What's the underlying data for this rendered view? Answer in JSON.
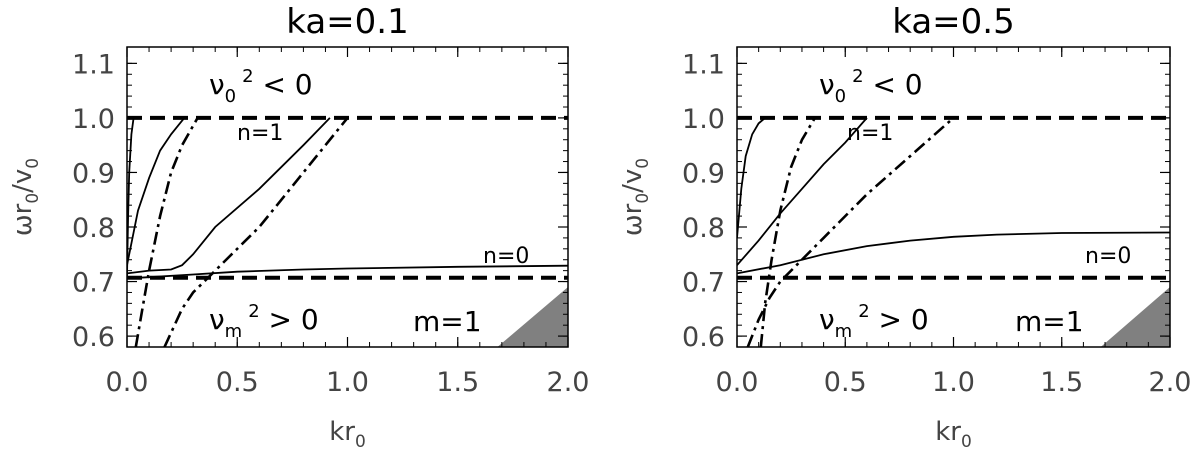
{
  "chart_data": [
    {
      "type": "line",
      "title": "ka=0.1",
      "xlabel": "kr",
      "xlabel_sub": "0",
      "ylabel": "ωr",
      "ylabel_sub": "0",
      "ylabel_tail": "/v",
      "ylabel_sub2": "0",
      "xlim": [
        0,
        2.0
      ],
      "ylim": [
        0.58,
        1.13
      ],
      "xticks": [
        "0.0",
        "0.5",
        "1.0",
        "1.5",
        "2.0"
      ],
      "yticks": [
        "0.6",
        "0.7",
        "0.8",
        "0.9",
        "1.0",
        "1.1"
      ],
      "hlines": [
        1.0,
        0.707
      ],
      "labels": {
        "nu0": "ν",
        "nu0_sub": "0",
        "nu0_sup": "2",
        "nu0_rel": "< 0",
        "num": "ν",
        "num_sub": "m",
        "num_sup": "2",
        "num_rel": "> 0",
        "n1": "n=1",
        "n0": "n=0",
        "m": "m=1"
      },
      "series": [
        {
          "style": "solid",
          "x": [
            0.0,
            0.005,
            0.01,
            0.02,
            0.03
          ],
          "y": [
            0.71,
            0.82,
            0.9,
            0.97,
            1.0
          ]
        },
        {
          "style": "solid",
          "x": [
            0.0,
            0.05,
            0.1,
            0.15,
            0.2,
            0.26
          ],
          "y": [
            0.73,
            0.83,
            0.89,
            0.94,
            0.97,
            1.0
          ]
        },
        {
          "style": "dashdot",
          "x": [
            0.04,
            0.07,
            0.1,
            0.15,
            0.2,
            0.25,
            0.32
          ],
          "y": [
            0.58,
            0.65,
            0.72,
            0.82,
            0.9,
            0.95,
            1.0
          ]
        },
        {
          "style": "solid",
          "x": [
            0.0,
            0.1,
            0.2,
            0.25,
            0.3,
            0.4,
            0.6,
            0.8,
            0.92
          ],
          "y": [
            0.715,
            0.72,
            0.722,
            0.73,
            0.75,
            0.8,
            0.87,
            0.95,
            1.0
          ]
        },
        {
          "style": "dashdot",
          "x": [
            0.17,
            0.25,
            0.3,
            0.4,
            0.6,
            0.8,
            1.0
          ],
          "y": [
            0.58,
            0.65,
            0.68,
            0.72,
            0.8,
            0.9,
            1.0
          ]
        },
        {
          "style": "solid",
          "x": [
            0.0,
            0.1,
            0.3,
            0.5,
            0.8,
            1.0,
            1.5,
            2.0
          ],
          "y": [
            0.706,
            0.708,
            0.713,
            0.718,
            0.722,
            0.724,
            0.727,
            0.729
          ]
        }
      ],
      "shaded": {
        "x": [
          1.68,
          2.0,
          2.0
        ],
        "y": [
          0.58,
          0.69,
          0.58
        ],
        "color": "#808080"
      }
    },
    {
      "type": "line",
      "title": "ka=0.5",
      "xlabel": "kr",
      "xlabel_sub": "0",
      "ylabel": "ωr",
      "ylabel_sub": "0",
      "ylabel_tail": "/v",
      "ylabel_sub2": "0",
      "xlim": [
        0,
        2.0
      ],
      "ylim": [
        0.58,
        1.13
      ],
      "xticks": [
        "0.0",
        "0.5",
        "1.0",
        "1.5",
        "2.0"
      ],
      "yticks": [
        "0.6",
        "0.7",
        "0.8",
        "0.9",
        "1.0",
        "1.1"
      ],
      "hlines": [
        1.0,
        0.707
      ],
      "labels": {
        "nu0": "ν",
        "nu0_sub": "0",
        "nu0_sup": "2",
        "nu0_rel": "< 0",
        "num": "ν",
        "num_sub": "m",
        "num_sup": "2",
        "num_rel": "> 0",
        "n1": "n=1",
        "n0": "n=0",
        "m": "m=1"
      },
      "series": [
        {
          "style": "solid",
          "x": [
            0.0,
            0.02,
            0.04,
            0.07,
            0.1,
            0.13
          ],
          "y": [
            0.78,
            0.87,
            0.93,
            0.97,
            0.99,
            1.0
          ]
        },
        {
          "style": "dashdot",
          "x": [
            0.11,
            0.13,
            0.16,
            0.2,
            0.25,
            0.3,
            0.36
          ],
          "y": [
            0.58,
            0.66,
            0.74,
            0.83,
            0.91,
            0.96,
            1.0
          ]
        },
        {
          "style": "solid",
          "x": [
            0.0,
            0.1,
            0.2,
            0.3,
            0.4,
            0.5,
            0.6
          ],
          "y": [
            0.73,
            0.775,
            0.825,
            0.87,
            0.915,
            0.955,
            1.0
          ]
        },
        {
          "style": "dashdot",
          "x": [
            0.05,
            0.1,
            0.15,
            0.2,
            0.4,
            0.6,
            0.8,
            1.0
          ],
          "y": [
            0.58,
            0.63,
            0.67,
            0.7,
            0.78,
            0.86,
            0.93,
            1.0
          ]
        },
        {
          "style": "solid",
          "x": [
            0.0,
            0.2,
            0.4,
            0.6,
            0.8,
            1.0,
            1.2,
            1.5,
            2.0
          ],
          "y": [
            0.715,
            0.73,
            0.75,
            0.765,
            0.775,
            0.782,
            0.786,
            0.789,
            0.79
          ]
        }
      ],
      "shaded": {
        "x": [
          1.68,
          2.0,
          2.0
        ],
        "y": [
          0.58,
          0.69,
          0.58
        ],
        "color": "#808080"
      }
    }
  ]
}
